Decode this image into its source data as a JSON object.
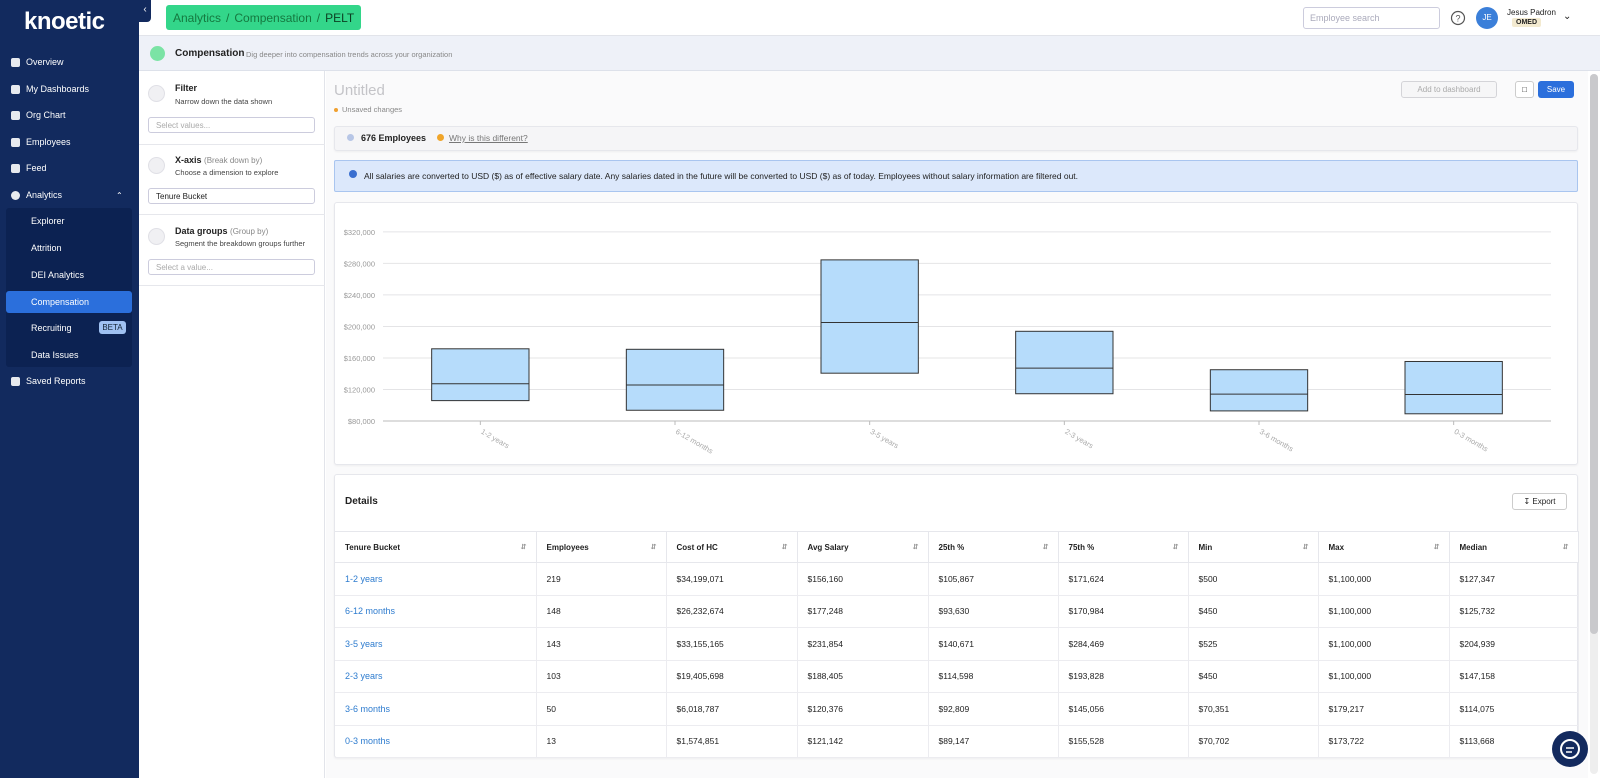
{
  "sidebar": {
    "logo": "knoetic",
    "nav": [
      "Overview",
      "My Dashboards",
      "Org Chart",
      "Employees",
      "Feed",
      "Analytics"
    ],
    "analytics_sub": [
      "Explorer",
      "Attrition",
      "DEI Analytics",
      "Compensation",
      "Recruiting",
      "Data Issues"
    ],
    "beta": "BETA",
    "saved_reports": "Saved Reports"
  },
  "topbar": {
    "breadcrumb": [
      "Analytics",
      "Compensation",
      "PELT"
    ],
    "separator": "/",
    "search_placeholder": "Employee search",
    "avatar": "JE",
    "user_name": "Jesus Padron",
    "org": "OMED"
  },
  "header": {
    "title": "Compensation",
    "subtitle": "Dig deeper into compensation trends across your organization"
  },
  "controls": {
    "filter": {
      "title": "Filter",
      "description": "Narrow down the data shown",
      "placeholder": "Select values..."
    },
    "x_axis": {
      "title": "X-axis",
      "hint": "(Break down by)",
      "description": "Choose a dimension to explore",
      "value": "Tenure Bucket"
    },
    "data_groups": {
      "title": "Data groups",
      "hint": "(Group by)",
      "description": "Segment the breakdown groups further",
      "placeholder": "Select a value..."
    }
  },
  "report": {
    "title": "Untitled",
    "status": "Unsaved changes",
    "add_to_dashboard": "Add to dashboard",
    "save": "Save",
    "employees": "676 Employees",
    "why_different": "Why is this different?",
    "info": "All salaries are converted to USD ($) as of effective salary date. Any salaries dated in the future will be converted to USD ($) as of today. Employees without salary information are filtered out."
  },
  "chart_data": {
    "type": "box",
    "categories": [
      "1-2 years",
      "6-12 months",
      "3-5 years",
      "2-3 years",
      "3-6 months",
      "0-3 months"
    ],
    "q1": [
      105867,
      93630,
      140671,
      114598,
      92809,
      89147
    ],
    "median": [
      127347,
      125732,
      204939,
      147158,
      114075,
      113668
    ],
    "q3": [
      171624,
      170984,
      284469,
      193828,
      145056,
      155528
    ],
    "color": "#b6dcfb",
    "ylim": [
      80000,
      330000
    ],
    "yticks": [
      {
        "value": 80000,
        "label": "$80,000"
      },
      {
        "value": 120000,
        "label": "$120,000"
      },
      {
        "value": 160000,
        "label": "$160,000"
      },
      {
        "value": 200000,
        "label": "$200,000"
      },
      {
        "value": 240000,
        "label": "$240,000"
      },
      {
        "value": 280000,
        "label": "$280,000"
      },
      {
        "value": 320000,
        "label": "$320,000"
      }
    ],
    "grid": true
  },
  "details": {
    "title": "Details",
    "export": "Export",
    "columns": [
      "Tenure Bucket",
      "Employees",
      "Cost of HC",
      "Avg Salary",
      "25th %",
      "75th %",
      "Min",
      "Max",
      "Median"
    ],
    "rows": [
      [
        "1-2 years",
        "219",
        "$34,199,071",
        "$156,160",
        "$105,867",
        "$171,624",
        "$500",
        "$1,100,000",
        "$127,347"
      ],
      [
        "6-12 months",
        "148",
        "$26,232,674",
        "$177,248",
        "$93,630",
        "$170,984",
        "$450",
        "$1,100,000",
        "$125,732"
      ],
      [
        "3-5 years",
        "143",
        "$33,155,165",
        "$231,854",
        "$140,671",
        "$284,469",
        "$525",
        "$1,100,000",
        "$204,939"
      ],
      [
        "2-3 years",
        "103",
        "$19,405,698",
        "$188,405",
        "$114,598",
        "$193,828",
        "$450",
        "$1,100,000",
        "$147,158"
      ],
      [
        "3-6 months",
        "50",
        "$6,018,787",
        "$120,376",
        "$92,809",
        "$145,056",
        "$70,351",
        "$179,217",
        "$114,075"
      ],
      [
        "0-3 months",
        "13",
        "$1,574,851",
        "$121,142",
        "$89,147",
        "$155,528",
        "$70,702",
        "$173,722",
        "$113,668"
      ]
    ]
  }
}
